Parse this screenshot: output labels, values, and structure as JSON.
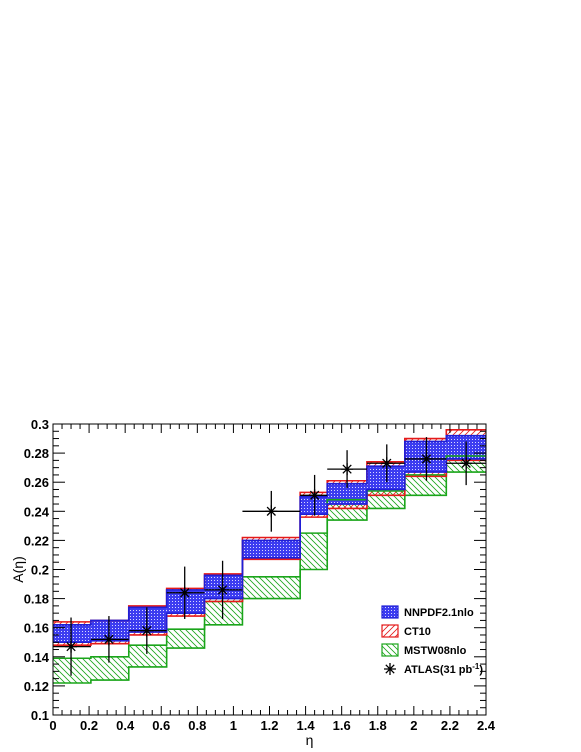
{
  "chart_data": {
    "type": "histogram-bands",
    "title": "",
    "xlabel": "η",
    "ylabel": "A(η)",
    "xlim": [
      0,
      2.4
    ],
    "ylim": [
      0.1,
      0.3
    ],
    "xticks": [
      "0",
      "0.2",
      "0.4",
      "0.6",
      "0.8",
      "1",
      "1.2",
      "1.4",
      "1.6",
      "1.8",
      "2",
      "2.2",
      "2.4"
    ],
    "yticks": [
      "0.1",
      "0.12",
      "0.14",
      "0.16",
      "0.18",
      "0.2",
      "0.22",
      "0.24",
      "0.26",
      "0.28",
      "0.3"
    ],
    "bin_edges": [
      0,
      0.21,
      0.42,
      0.63,
      0.84,
      1.05,
      1.37,
      1.52,
      1.74,
      1.95,
      2.18,
      2.4
    ],
    "legend_position": "bottom-right",
    "bands": [
      {
        "name": "NNPDF2.1nlo",
        "style": "blue-dotted",
        "color": "#1f1fd6",
        "low": [
          0.15,
          0.151,
          0.157,
          0.17,
          0.18,
          0.208,
          0.238,
          0.245,
          0.255,
          0.267,
          0.276
        ],
        "high": [
          0.162,
          0.165,
          0.174,
          0.186,
          0.196,
          0.22,
          0.25,
          0.259,
          0.271,
          0.288,
          0.292
        ]
      },
      {
        "name": "CT10",
        "style": "red-hatch",
        "color": "#e41a1a",
        "low": [
          0.148,
          0.149,
          0.155,
          0.168,
          0.178,
          0.207,
          0.236,
          0.242,
          0.251,
          0.264,
          0.275
        ],
        "high": [
          0.164,
          0.165,
          0.175,
          0.187,
          0.197,
          0.222,
          0.253,
          0.261,
          0.274,
          0.29,
          0.296
        ]
      },
      {
        "name": "MSTW08nlo",
        "style": "green-hatch",
        "color": "#1aa51a",
        "low": [
          0.122,
          0.124,
          0.133,
          0.146,
          0.162,
          0.18,
          0.2,
          0.234,
          0.242,
          0.251,
          0.267
        ],
        "high": [
          0.139,
          0.14,
          0.148,
          0.159,
          0.178,
          0.195,
          0.225,
          0.248,
          0.254,
          0.265,
          0.278
        ]
      }
    ],
    "data_series": {
      "name": "ATLAS(31 pb",
      "name_sup": "-1",
      "name_suffix": ")",
      "color": "#000000",
      "points": [
        {
          "x": 0.1,
          "xlo": 0.0,
          "xhi": 0.21,
          "y": 0.147,
          "err": 0.02
        },
        {
          "x": 0.31,
          "xlo": 0.21,
          "xhi": 0.42,
          "y": 0.152,
          "err": 0.016
        },
        {
          "x": 0.52,
          "xlo": 0.42,
          "xhi": 0.63,
          "y": 0.158,
          "err": 0.016
        },
        {
          "x": 0.73,
          "xlo": 0.63,
          "xhi": 0.84,
          "y": 0.184,
          "err": 0.018
        },
        {
          "x": 0.94,
          "xlo": 0.84,
          "xhi": 1.05,
          "y": 0.186,
          "err": 0.02
        },
        {
          "x": 1.21,
          "xlo": 1.05,
          "xhi": 1.37,
          "y": 0.24,
          "err": 0.014
        },
        {
          "x": 1.45,
          "xlo": 1.37,
          "xhi": 1.52,
          "y": 0.251,
          "err": 0.014
        },
        {
          "x": 1.63,
          "xlo": 1.52,
          "xhi": 1.74,
          "y": 0.269,
          "err": 0.013
        },
        {
          "x": 1.85,
          "xlo": 1.74,
          "xhi": 1.95,
          "y": 0.273,
          "err": 0.013
        },
        {
          "x": 2.07,
          "xlo": 1.95,
          "xhi": 2.18,
          "y": 0.276,
          "err": 0.015
        },
        {
          "x": 2.29,
          "xlo": 2.18,
          "xhi": 2.4,
          "y": 0.273,
          "err": 0.015
        }
      ]
    }
  }
}
